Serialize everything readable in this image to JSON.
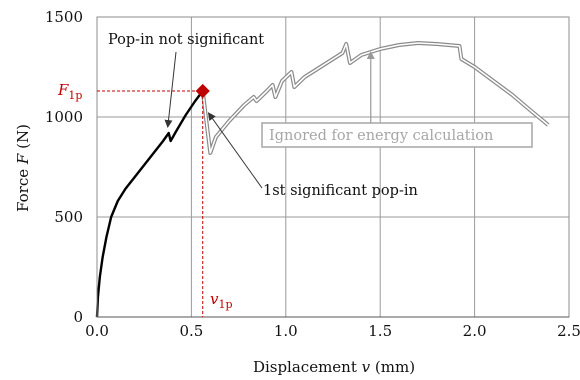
{
  "chart_data": {
    "type": "line",
    "xlabel_prefix": "Displacement ",
    "xlabel_var": "v",
    "xlabel_suffix": " (mm)",
    "ylabel_prefix": "Force ",
    "ylabel_var": "F",
    "ylabel_suffix": " (N)",
    "xlim": [
      0,
      2.5
    ],
    "ylim": [
      0,
      1500
    ],
    "x_ticks": [
      "0.0",
      "0.5",
      "1.0",
      "1.5",
      "2.0",
      "2.5"
    ],
    "y_ticks": [
      "0",
      "500",
      "1000",
      "1500"
    ],
    "x_tick_values": [
      0,
      0.5,
      1.0,
      1.5,
      2.0,
      2.5
    ],
    "y_tick_values": [
      0,
      500,
      1000,
      1500
    ],
    "grid": true,
    "series": [
      {
        "role": "considered",
        "color": "#000000",
        "points": [
          [
            0,
            0
          ],
          [
            0.005,
            100
          ],
          [
            0.015,
            200
          ],
          [
            0.03,
            300
          ],
          [
            0.05,
            400
          ],
          [
            0.075,
            500
          ],
          [
            0.11,
            580
          ],
          [
            0.15,
            640
          ],
          [
            0.2,
            700
          ],
          [
            0.25,
            760
          ],
          [
            0.3,
            820
          ],
          [
            0.35,
            880
          ],
          [
            0.38,
            920
          ],
          [
            0.39,
            880
          ],
          [
            0.42,
            930
          ],
          [
            0.47,
            1010
          ],
          [
            0.52,
            1080
          ],
          [
            0.56,
            1130
          ]
        ]
      },
      {
        "role": "ignored",
        "color": "#a6a6a6",
        "points": [
          [
            0.56,
            1130
          ],
          [
            0.6,
            820
          ],
          [
            0.63,
            900
          ],
          [
            0.7,
            980
          ],
          [
            0.78,
            1060
          ],
          [
            0.83,
            1100
          ],
          [
            0.845,
            1080
          ],
          [
            0.9,
            1130
          ],
          [
            0.93,
            1160
          ],
          [
            0.945,
            1100
          ],
          [
            0.98,
            1180
          ],
          [
            1.03,
            1225
          ],
          [
            1.045,
            1150
          ],
          [
            1.1,
            1200
          ],
          [
            1.2,
            1260
          ],
          [
            1.3,
            1320
          ],
          [
            1.32,
            1365
          ],
          [
            1.34,
            1270
          ],
          [
            1.4,
            1310
          ],
          [
            1.5,
            1340
          ],
          [
            1.6,
            1360
          ],
          [
            1.7,
            1370
          ],
          [
            1.8,
            1365
          ],
          [
            1.92,
            1355
          ],
          [
            1.93,
            1290
          ],
          [
            2.0,
            1250
          ],
          [
            2.1,
            1180
          ],
          [
            2.2,
            1110
          ],
          [
            2.3,
            1030
          ],
          [
            2.39,
            960
          ]
        ]
      }
    ],
    "marker": {
      "x": 0.56,
      "y": 1130,
      "color": "#c00000"
    },
    "annotations": {
      "popin_not_significant": "Pop-in not significant",
      "first_significant": "1st significant pop-in",
      "ignored": "Ignored for energy calculation",
      "f1p_var": "F",
      "f1p_sub": "1p",
      "v1p_var": "v",
      "v1p_sub": "1p"
    }
  }
}
